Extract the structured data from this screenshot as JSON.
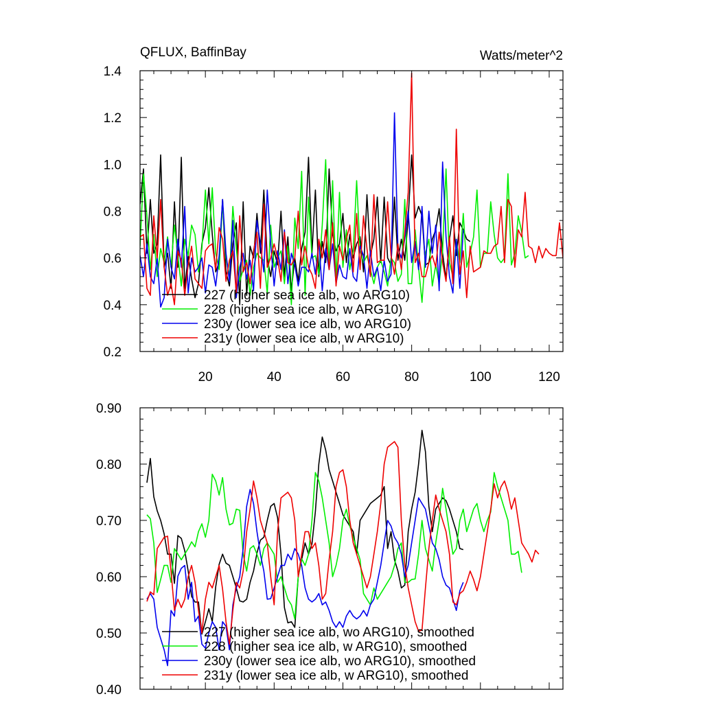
{
  "chart_data": [
    {
      "type": "line",
      "title": "QFLUX, BaffinBay",
      "units_label": "Watts/meter^2",
      "xlim": [
        1,
        124
      ],
      "ylim": [
        0.2,
        1.4
      ],
      "x_ticks": [
        20,
        40,
        60,
        80,
        100,
        120
      ],
      "x_tick_labels": [
        "20",
        "40",
        "60",
        "80",
        "100",
        "120"
      ],
      "y_ticks": [
        0.2,
        0.4,
        0.6,
        0.8,
        1.0,
        1.2,
        1.4
      ],
      "y_tick_labels": [
        "0.2",
        "0.4",
        "0.6",
        "0.8",
        "1.0",
        "1.2",
        "1.4"
      ],
      "legend": [
        "227 (higher sea ice alb, wo ARG10)",
        "228 (higher sea ice alb, w ARG10)",
        "230y (lower sea ice alb, wo ARG10)",
        "231y (lower sea ice alb, w ARG10)"
      ],
      "series": [
        {
          "name": "227 (higher sea ice alb, wo ARG10)",
          "color": "#000000",
          "x_start": 1,
          "values": [
            0.83,
            0.98,
            0.62,
            0.85,
            0.62,
            0.66,
            1.04,
            0.56,
            0.62,
            0.47,
            0.84,
            0.56,
            1.03,
            0.47,
            0.61,
            0.51,
            0.43,
            0.49,
            0.66,
            0.73,
            0.9,
            0.7,
            0.54,
            0.58,
            0.85,
            0.54,
            0.48,
            0.66,
            0.75,
            0.4,
            0.84,
            0.44,
            0.65,
            0.6,
            0.79,
            0.62,
            0.89,
            0.6,
            0.52,
            0.63,
            0.57,
            0.8,
            0.52,
            0.69,
            0.46,
            0.6,
            0.5,
            0.64,
            0.71,
            1.03,
            0.62,
            0.89,
            0.52,
            0.67,
            0.58,
            0.98,
            0.7,
            0.63,
            0.66,
            0.79,
            0.58,
            0.7,
            0.6,
            0.66,
            0.69,
            0.54,
            0.87,
            0.61,
            0.68,
            0.86,
            0.58,
            0.86,
            0.6,
            0.57,
            0.86,
            0.59,
            0.68,
            0.59,
            0.77,
            1.04,
            0.77,
            0.82,
            0.78,
            0.57,
            0.58,
            0.68,
            0.72,
            0.81,
            0.62,
            0.51,
            0.68,
            0.78,
            0.61,
            0.75,
            0.72,
            0.68,
            0.67
          ]
        },
        {
          "name": "228 (higher sea ice alb, w ARG10)",
          "color": "#00ee00",
          "x_start": 1,
          "values": [
            0.65,
            0.96,
            0.78,
            0.55,
            0.7,
            0.52,
            0.64,
            0.58,
            0.69,
            0.56,
            0.74,
            0.61,
            0.48,
            0.68,
            0.61,
            0.74,
            0.7,
            0.54,
            0.64,
            0.89,
            0.66,
            0.9,
            0.62,
            0.55,
            0.84,
            0.6,
            0.52,
            0.82,
            0.64,
            0.5,
            0.55,
            0.59,
            0.44,
            0.56,
            0.62,
            0.6,
            0.59,
            0.45,
            0.74,
            0.56,
            0.6,
            0.63,
            0.49,
            0.65,
            0.4,
            0.77,
            0.64,
            0.97,
            0.44,
            0.86,
            0.6,
            0.61,
            0.53,
            0.74,
            1.02,
            0.55,
            0.93,
            0.5,
            0.88,
            0.56,
            0.72,
            0.55,
            0.63,
            0.93,
            0.63,
            0.58,
            0.61,
            0.55,
            0.49,
            0.56,
            0.59,
            0.54,
            0.48,
            0.6,
            0.58,
            0.5,
            0.53,
            0.85,
            0.49,
            0.49,
            0.72,
            0.56,
            0.41,
            0.62,
            0.68,
            0.48,
            0.57,
            0.49,
            0.63,
            0.98,
            0.58,
            0.52,
            0.67,
            0.58,
            0.79,
            0.56,
            0.62,
            0.69,
            0.89,
            0.56,
            0.62,
            0.62,
            0.84,
            0.7,
            0.6,
            0.58,
            0.6,
            0.96,
            0.57,
            0.62,
            0.78,
            0.71,
            0.6,
            0.61
          ]
        },
        {
          "name": "230y (lower sea ice alb, wo ARG10)",
          "color": "#0000ee",
          "x_start": 1,
          "values": [
            0.61,
            0.52,
            0.66,
            0.52,
            0.49,
            0.6,
            0.39,
            0.43,
            0.68,
            0.56,
            0.51,
            0.68,
            0.56,
            0.82,
            0.45,
            0.6,
            0.54,
            0.56,
            0.6,
            0.45,
            0.57,
            0.56,
            0.48,
            0.61,
            0.85,
            0.62,
            0.5,
            0.76,
            0.43,
            0.56,
            0.62,
            0.51,
            0.59,
            0.46,
            0.76,
            0.66,
            0.54,
            0.89,
            0.66,
            0.48,
            0.63,
            0.55,
            0.72,
            0.49,
            0.62,
            0.57,
            0.48,
            0.56,
            0.56,
            0.54,
            0.62,
            0.53,
            0.67,
            0.46,
            0.64,
            0.55,
            0.66,
            0.49,
            0.57,
            0.52,
            0.51,
            0.64,
            0.52,
            0.5,
            0.65,
            0.61,
            0.47,
            0.63,
            0.52,
            0.56,
            0.46,
            0.59,
            0.5,
            0.53,
            1.22,
            0.64,
            0.6,
            0.68,
            0.8,
            0.58,
            0.67,
            0.55,
            0.82,
            0.56,
            0.8,
            0.62,
            0.74,
            0.46,
            1.01,
            0.69,
            0.52,
            0.45,
            0.68,
            0.47,
            0.72
          ]
        },
        {
          "name": "231y (lower sea ice alb, w ARG10)",
          "color": "#ee0000",
          "x_start": 1,
          "values": [
            0.69,
            0.7,
            0.47,
            0.44,
            0.78,
            0.6,
            0.85,
            0.56,
            0.44,
            0.49,
            0.4,
            0.63,
            0.59,
            0.44,
            0.57,
            0.65,
            0.51,
            0.49,
            0.47,
            0.63,
            0.65,
            0.66,
            0.55,
            0.73,
            0.68,
            0.5,
            0.59,
            0.63,
            0.45,
            0.78,
            0.54,
            0.58,
            0.49,
            0.63,
            0.71,
            0.47,
            0.83,
            0.56,
            0.6,
            0.66,
            0.6,
            0.5,
            0.71,
            0.58,
            0.57,
            0.6,
            0.8,
            0.57,
            0.65,
            0.56,
            0.53,
            0.47,
            0.68,
            0.6,
            0.72,
            0.55,
            0.75,
            0.48,
            0.65,
            0.59,
            0.68,
            0.74,
            0.54,
            0.79,
            0.55,
            0.78,
            0.64,
            0.52,
            0.87,
            0.58,
            0.59,
            0.59,
            0.84,
            0.61,
            0.53,
            0.66,
            0.55,
            0.71,
            0.88,
            1.39,
            0.58,
            0.62,
            0.52,
            0.52,
            0.58,
            0.61,
            0.56,
            0.71,
            0.58,
            0.5,
            0.69,
            0.49,
            1.15,
            0.53,
            0.63,
            0.43,
            0.65,
            0.54,
            0.55,
            0.56,
            0.63,
            0.62,
            0.62,
            0.65,
            0.66,
            0.82,
            0.58,
            0.85,
            0.82,
            0.56,
            0.72,
            0.69,
            0.88,
            0.65,
            0.64,
            0.58,
            0.65,
            0.6,
            0.64,
            0.62,
            0.61,
            0.61,
            0.75,
            0.6
          ]
        }
      ]
    },
    {
      "type": "line",
      "xlim": [
        1,
        124
      ],
      "ylim": [
        0.4,
        0.9
      ],
      "x_ticks": [
        20,
        40,
        60,
        80,
        100,
        120
      ],
      "y_ticks": [
        0.4,
        0.5,
        0.6,
        0.7,
        0.8,
        0.9
      ],
      "y_tick_labels": [
        "0.40",
        "0.50",
        "0.60",
        "0.70",
        "0.80",
        "0.90"
      ],
      "legend": [
        "227 (higher sea ice alb, wo ARG10), smoothed",
        "228 (higher sea ice alb, w ARG10), smoothed",
        "230y (lower sea ice alb, wo ARG10), smoothed",
        "231y (lower sea ice alb, w ARG10), smoothed"
      ],
      "series": [
        {
          "name": "227 (higher sea ice alb, wo ARG10), smoothed",
          "color": "#000000",
          "x_start": 3,
          "values": [
            0.767,
            0.81,
            0.742,
            0.717,
            0.7,
            0.676,
            0.64,
            0.64,
            0.588,
            0.673,
            0.668,
            0.646,
            0.61,
            0.565,
            0.555,
            0.555,
            0.498,
            0.52,
            0.543,
            0.52,
            0.582,
            0.622,
            0.64,
            0.624,
            0.62,
            0.6,
            0.58,
            0.557,
            0.555,
            0.56,
            0.59,
            0.61,
            0.642,
            0.665,
            0.67,
            0.7,
            0.725,
            0.73,
            0.705,
            0.64,
            0.545,
            0.518,
            0.52,
            0.51,
            0.6,
            0.63,
            0.66,
            0.64,
            0.658,
            0.716,
            0.8,
            0.848,
            0.825,
            0.79,
            0.77,
            0.75,
            0.73,
            0.71,
            0.7,
            0.69,
            0.68,
            0.64,
            0.7,
            0.71,
            0.72,
            0.73,
            0.735,
            0.74,
            0.745,
            0.76,
            0.65,
            0.68,
            0.63,
            0.61,
            0.58,
            0.585,
            0.68,
            0.72,
            0.75,
            0.8,
            0.86,
            0.822,
            0.725,
            0.68,
            0.72,
            0.73,
            0.74,
            0.735,
            0.72,
            0.7,
            0.68,
            0.65,
            0.648
          ]
        },
        {
          "name": "228 (higher sea ice alb, w ARG10), smoothed",
          "color": "#00ee00",
          "x_start": 3,
          "values": [
            0.71,
            0.703,
            0.66,
            0.572,
            0.595,
            0.62,
            0.62,
            0.59,
            0.65,
            0.64,
            0.63,
            0.64,
            0.65,
            0.662,
            0.653,
            0.68,
            0.694,
            0.67,
            0.7,
            0.782,
            0.77,
            0.745,
            0.776,
            0.72,
            0.692,
            0.695,
            0.72,
            0.718,
            0.64,
            0.61,
            0.65,
            0.655,
            0.64,
            0.62,
            0.65,
            0.66,
            0.65,
            0.64,
            0.59,
            0.6,
            0.58,
            0.56,
            0.55,
            0.525,
            0.6,
            0.632,
            0.62,
            0.64,
            0.7,
            0.785,
            0.77,
            0.74,
            0.7,
            0.66,
            0.6,
            0.62,
            0.65,
            0.7,
            0.72,
            0.69,
            0.67,
            0.65,
            0.63,
            0.57,
            0.56,
            0.55,
            0.58,
            0.56,
            0.57,
            0.58,
            0.59,
            0.6,
            0.62,
            0.65,
            0.66,
            0.59,
            0.59,
            0.595,
            0.596,
            0.64,
            0.7,
            0.65,
            0.63,
            0.61,
            0.66,
            0.7,
            0.757,
            0.72,
            0.68,
            0.64,
            0.65,
            0.7,
            0.72,
            0.68,
            0.7,
            0.72,
            0.73,
            0.7,
            0.68,
            0.7,
            0.715,
            0.785,
            0.76,
            0.74,
            0.72,
            0.7,
            0.64,
            0.64,
            0.645,
            0.607
          ]
        },
        {
          "name": "230y (lower sea ice alb, wo ARG10), smoothed",
          "color": "#0000ee",
          "x_start": 3,
          "values": [
            0.56,
            0.57,
            0.56,
            0.51,
            0.49,
            0.47,
            0.442,
            0.54,
            0.53,
            0.601,
            0.615,
            0.62,
            0.56,
            0.59,
            0.52,
            0.53,
            0.48,
            0.473,
            0.5,
            0.52,
            0.51,
            0.47,
            0.52,
            0.512,
            0.47,
            0.55,
            0.58,
            0.6,
            0.65,
            0.725,
            0.755,
            0.73,
            0.68,
            0.64,
            0.61,
            0.56,
            0.561,
            0.58,
            0.6,
            0.62,
            0.62,
            0.64,
            0.63,
            0.65,
            0.64,
            0.62,
            0.58,
            0.56,
            0.555,
            0.56,
            0.57,
            0.55,
            0.555,
            0.54,
            0.52,
            0.51,
            0.52,
            0.51,
            0.53,
            0.54,
            0.53,
            0.525,
            0.53,
            0.54,
            0.53,
            0.55,
            0.56,
            0.59,
            0.62,
            0.66,
            0.7,
            0.69,
            0.67,
            0.66,
            0.64,
            0.6,
            0.62,
            0.66,
            0.7,
            0.74,
            0.73,
            0.72,
            0.69,
            0.66,
            0.65,
            0.63,
            0.6,
            0.585,
            0.58,
            0.56,
            0.54,
            0.575,
            0.59
          ]
        },
        {
          "name": "231y (lower sea ice alb, w ARG10), smoothed",
          "color": "#ee0000",
          "x_start": 3,
          "values": [
            0.556,
            0.573,
            0.568,
            0.65,
            0.66,
            0.67,
            0.672,
            0.61,
            0.54,
            0.56,
            0.545,
            0.56,
            0.6,
            0.62,
            0.59,
            0.54,
            0.5,
            0.56,
            0.59,
            0.58,
            0.6,
            0.62,
            0.578,
            0.52,
            0.48,
            0.54,
            0.59,
            0.58,
            0.61,
            0.68,
            0.72,
            0.77,
            0.74,
            0.7,
            0.68,
            0.66,
            0.6,
            0.55,
            0.68,
            0.74,
            0.745,
            0.75,
            0.74,
            0.7,
            0.6,
            0.64,
            0.68,
            0.68,
            0.65,
            0.66,
            0.62,
            0.56,
            0.57,
            0.63,
            0.68,
            0.76,
            0.785,
            0.79,
            0.76,
            0.7,
            0.66,
            0.64,
            0.62,
            0.6,
            0.58,
            0.6,
            0.64,
            0.68,
            0.73,
            0.8,
            0.83,
            0.835,
            0.84,
            0.83,
            0.7,
            0.62,
            0.58,
            0.55,
            0.52,
            0.503,
            0.505,
            0.58,
            0.65,
            0.7,
            0.745,
            0.72,
            0.7,
            0.68,
            0.64,
            0.555,
            0.55,
            0.57,
            0.575,
            0.59,
            0.61,
            0.595,
            0.575,
            0.6,
            0.64,
            0.68,
            0.72,
            0.765,
            0.74,
            0.76,
            0.77,
            0.75,
            0.72,
            0.74,
            0.7,
            0.66,
            0.65,
            0.64,
            0.626,
            0.647,
            0.64
          ]
        }
      ]
    }
  ]
}
